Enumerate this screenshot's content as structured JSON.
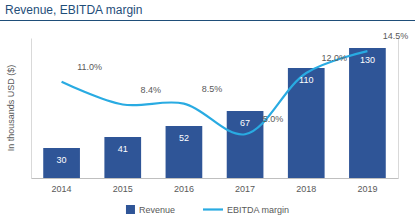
{
  "chart_data": {
    "type": "bar",
    "title": "Revenue, EBITDA margin",
    "y_label": "In thousands USD ($)",
    "categories": [
      "2014",
      "2015",
      "2016",
      "2017",
      "2018",
      "2019"
    ],
    "series": [
      {
        "name": "Revenue",
        "type": "bar",
        "color": "#2f5597",
        "values": [
          30,
          41,
          52,
          67,
          110,
          130
        ]
      },
      {
        "name": "EBITDA margin",
        "type": "line",
        "color": "#29abe2",
        "axis": "y2",
        "values": [
          11.0,
          8.4,
          8.5,
          5.0,
          12.0,
          14.5
        ],
        "value_labels": [
          "11.0%",
          "8.4%",
          "8.5%",
          "5.0%",
          "12.0%",
          "14.5%"
        ]
      }
    ],
    "ylim": [
      0,
      140
    ],
    "y2lim": [
      0,
      16
    ],
    "tick_labels": "x",
    "data_labels": true,
    "legend": "bottom"
  }
}
